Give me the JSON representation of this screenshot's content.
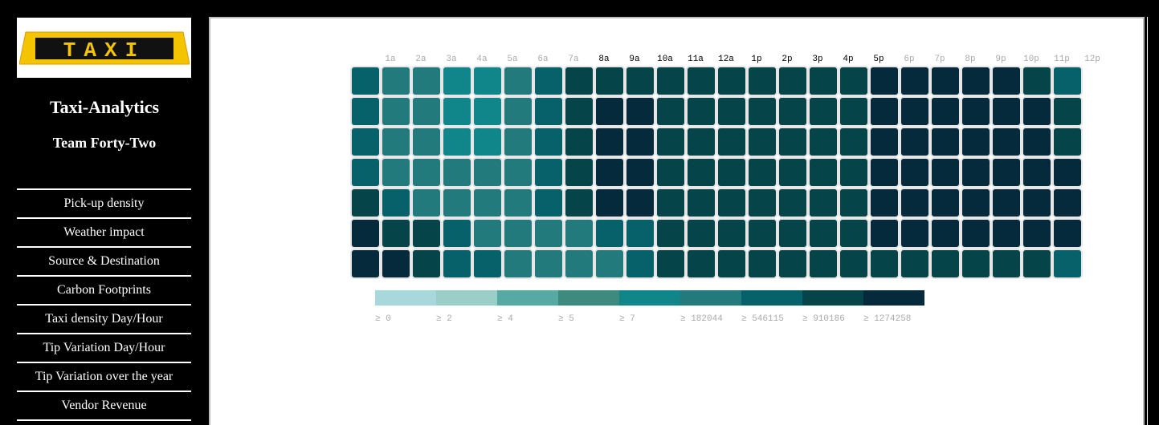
{
  "sidebar": {
    "logo_text": "TAXI",
    "title": "Taxi-Analytics",
    "subtitle": "Team Forty-Two",
    "nav": [
      "Pick-up density",
      "Weather impact",
      "Source & Destination",
      "Carbon Footprints",
      "Taxi density Day/Hour",
      "Tip Variation Day/Hour",
      "Tip Variation over the year",
      "Vendor Revenue"
    ]
  },
  "chart_data": {
    "type": "heatmap",
    "title": "",
    "xlabel": "",
    "ylabel": "",
    "x_labels": [
      "1a",
      "2a",
      "3a",
      "4a",
      "5a",
      "6a",
      "7a",
      "8a",
      "9a",
      "10a",
      "11a",
      "12a",
      "1p",
      "2p",
      "3p",
      "4p",
      "5p",
      "6p",
      "7p",
      "8p",
      "9p",
      "10p",
      "11p",
      "12p"
    ],
    "x_label_highlight": [
      false,
      false,
      false,
      false,
      false,
      false,
      false,
      true,
      true,
      true,
      true,
      true,
      true,
      true,
      true,
      true,
      true,
      false,
      false,
      false,
      false,
      false,
      false,
      false
    ],
    "row_count": 7,
    "color_scale": [
      "#a8d8dc",
      "#9acfc8",
      "#56aaa3",
      "#3d8a7e",
      "#10868b",
      "#237a7c",
      "#06616a",
      "#054448",
      "#042a3b"
    ],
    "thresholds": [
      0,
      2,
      4,
      5,
      7,
      182044,
      546115,
      910186,
      1274258
    ],
    "legend_labels": [
      "≥ 0",
      "≥ 2",
      "≥ 4",
      "≥ 5",
      "≥ 7",
      "≥ 182044",
      "≥ 546115",
      "≥ 910186",
      "≥ 1274258"
    ],
    "bucket_grid": [
      [
        6,
        5,
        5,
        4,
        4,
        5,
        6,
        7,
        7,
        7,
        7,
        7,
        7,
        7,
        7,
        7,
        7,
        8,
        8,
        8,
        8,
        8,
        7,
        6
      ],
      [
        6,
        5,
        5,
        4,
        4,
        5,
        6,
        7,
        8,
        8,
        7,
        7,
        7,
        7,
        7,
        7,
        7,
        8,
        8,
        8,
        8,
        8,
        8,
        7
      ],
      [
        6,
        5,
        5,
        4,
        4,
        5,
        6,
        7,
        8,
        8,
        7,
        7,
        7,
        7,
        7,
        7,
        7,
        8,
        8,
        8,
        8,
        8,
        8,
        7
      ],
      [
        6,
        5,
        5,
        5,
        5,
        5,
        6,
        7,
        8,
        8,
        7,
        7,
        7,
        7,
        7,
        7,
        7,
        8,
        8,
        8,
        8,
        8,
        8,
        8
      ],
      [
        7,
        6,
        5,
        5,
        5,
        5,
        6,
        7,
        8,
        8,
        7,
        7,
        7,
        7,
        7,
        7,
        7,
        8,
        8,
        8,
        8,
        8,
        8,
        8
      ],
      [
        8,
        7,
        7,
        6,
        5,
        5,
        5,
        5,
        6,
        6,
        7,
        7,
        7,
        7,
        7,
        7,
        7,
        8,
        8,
        8,
        8,
        8,
        8,
        8
      ],
      [
        8,
        8,
        7,
        6,
        6,
        5,
        5,
        5,
        5,
        6,
        7,
        7,
        7,
        7,
        7,
        7,
        7,
        7,
        7,
        7,
        7,
        7,
        7,
        6
      ]
    ],
    "grid": false,
    "legend_position": "bottom-left"
  }
}
